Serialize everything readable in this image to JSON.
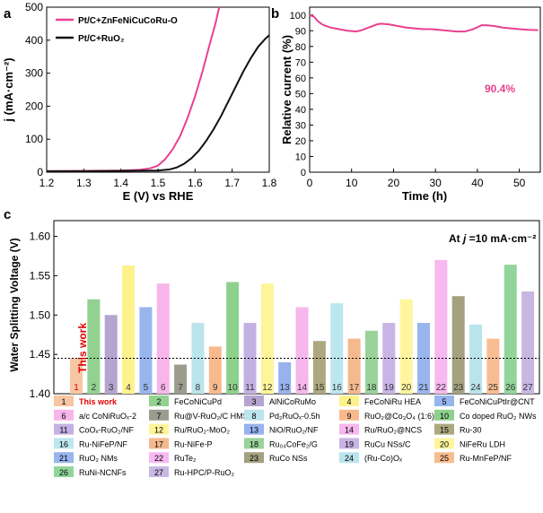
{
  "chart_data": [
    {
      "panel": "a",
      "type": "line",
      "xlabel": "E (V) vs RHE",
      "ylabel": "j (mA·cm⁻²)",
      "xlim": [
        1.2,
        1.8
      ],
      "ylim": [
        0,
        500
      ],
      "xticks": [
        "1.2",
        "1.3",
        "1.4",
        "1.5",
        "1.6",
        "1.7",
        "1.8"
      ],
      "yticks": [
        "0",
        "100",
        "200",
        "300",
        "400",
        "500"
      ],
      "legend_position": "top-left",
      "series": [
        {
          "name": "Pt/C+ZnFeNiCuCoRu-O",
          "color": "#e8418f",
          "x": [
            1.2,
            1.3,
            1.4,
            1.45,
            1.48,
            1.5,
            1.52,
            1.54,
            1.56,
            1.58,
            1.6,
            1.62,
            1.64,
            1.655,
            1.665
          ],
          "y": [
            3,
            4,
            5,
            7,
            12,
            20,
            40,
            70,
            110,
            165,
            230,
            305,
            390,
            450,
            500
          ]
        },
        {
          "name": "Pt/C+RuO₂",
          "color": "#111111",
          "x": [
            1.2,
            1.3,
            1.4,
            1.5,
            1.53,
            1.55,
            1.57,
            1.59,
            1.61,
            1.63,
            1.65,
            1.67,
            1.69,
            1.71,
            1.73,
            1.75,
            1.77,
            1.79,
            1.8
          ],
          "y": [
            3,
            3,
            4,
            5,
            8,
            14,
            25,
            42,
            65,
            95,
            130,
            170,
            215,
            260,
            305,
            345,
            380,
            405,
            415
          ]
        }
      ]
    },
    {
      "panel": "b",
      "type": "line",
      "xlabel": "Time (h)",
      "ylabel": "Relative current (%)",
      "xlim": [
        0,
        55
      ],
      "ylim": [
        0,
        105
      ],
      "xticks": [
        "0",
        "10",
        "20",
        "30",
        "40",
        "50"
      ],
      "yticks": [
        "0",
        "10",
        "20",
        "30",
        "40",
        "50",
        "60",
        "70",
        "80",
        "90",
        "100"
      ],
      "annotation": "90.4%",
      "series": [
        {
          "name": "",
          "color": "#e8418f",
          "x": [
            0,
            1,
            2,
            3,
            4,
            5,
            7,
            9,
            11,
            12,
            14,
            16,
            17,
            19,
            21,
            23,
            25,
            27,
            29,
            31,
            33,
            35,
            37,
            39,
            41,
            42,
            44,
            46,
            48,
            50,
            52,
            54.5
          ],
          "y": [
            100,
            99,
            96,
            94,
            93,
            92,
            91,
            90,
            89.5,
            90,
            92,
            94,
            94.5,
            94,
            93,
            92,
            91.5,
            91,
            91,
            90.5,
            90,
            89.5,
            89.5,
            91,
            93.5,
            93.5,
            93,
            92,
            91.5,
            91,
            90.6,
            90.4
          ]
        }
      ]
    },
    {
      "panel": "c",
      "type": "bar",
      "ylabel": "Water Splitting Voltage (V)",
      "ylim": [
        1.4,
        1.62
      ],
      "yticks": [
        "1.40",
        "1.45",
        "1.50",
        "1.55",
        "1.60"
      ],
      "annotation": "At j =10 mA·cm⁻²",
      "highlight_label": "This work",
      "reference_line": 1.445,
      "categories": [
        "1",
        "2",
        "3",
        "4",
        "5",
        "6",
        "7",
        "8",
        "9",
        "10",
        "11",
        "12",
        "13",
        "14",
        "15",
        "16",
        "17",
        "18",
        "19",
        "20",
        "21",
        "22",
        "23",
        "24",
        "25",
        "26",
        "27"
      ],
      "values": [
        1.445,
        1.52,
        1.5,
        1.563,
        1.51,
        1.54,
        1.437,
        1.49,
        1.46,
        1.542,
        1.49,
        1.54,
        1.44,
        1.51,
        1.467,
        1.515,
        1.47,
        1.48,
        1.49,
        1.52,
        1.49,
        1.57,
        1.524,
        1.488,
        1.47,
        1.564,
        1.53
      ],
      "colors": [
        "#f7c6a2",
        "#92d18f",
        "#b5a4d0",
        "#fef28c",
        "#97b5ee",
        "#f8b5ea",
        "#9a9c8e",
        "#bbe5ec",
        "#f8ba8d",
        "#8ed18c",
        "#c4b1e3",
        "#fef59a",
        "#97b2ee",
        "#f6b7ec",
        "#aea880",
        "#bde7ef",
        "#f5b98e",
        "#99d39a",
        "#c8b4e5",
        "#fef59e",
        "#98b5ee",
        "#f8b8f0",
        "#a3a17f",
        "#bae4ed",
        "#f7bd91",
        "#92d59b",
        "#c8b7e3"
      ],
      "legend": [
        {
          "n": "1",
          "label": "This work"
        },
        {
          "n": "2",
          "label": "FeCoNiCuPd"
        },
        {
          "n": "3",
          "label": "AlNiCoRuMo"
        },
        {
          "n": "4",
          "label": "FeCoNiRu HEA"
        },
        {
          "n": "5",
          "label": "FeCoNiCuPtIr@CNT"
        },
        {
          "n": "6",
          "label": "a/c CoNiRuOₓ-2"
        },
        {
          "n": "7",
          "label": "Ru@V-RuO₂/C HMS"
        },
        {
          "n": "8",
          "label": "Pd₂RuOₓ-0.5h"
        },
        {
          "n": "9",
          "label": "RuO₂@Co₃O₄ (1:6)"
        },
        {
          "n": "10",
          "label": "Co doped RuO₂ NWs"
        },
        {
          "n": "11",
          "label": "CoOₓ-RuO₂/NF"
        },
        {
          "n": "12",
          "label": "Ru/RuO₂-MoO₂"
        },
        {
          "n": "13",
          "label": "NiO/RuO₂/NF"
        },
        {
          "n": "14",
          "label": "Ru/RuO₂@NCS"
        },
        {
          "n": "15",
          "label": "Ru-30"
        },
        {
          "n": "16",
          "label": "Ru-NiFeP/NF"
        },
        {
          "n": "17",
          "label": "Ru-NiFe-P"
        },
        {
          "n": "18",
          "label": "Ru₀₄CoFe₂/G"
        },
        {
          "n": "19",
          "label": "RuCu NSs/C"
        },
        {
          "n": "20",
          "label": "NiFeRu LDH"
        },
        {
          "n": "21",
          "label": "RuO₂ NMs"
        },
        {
          "n": "22",
          "label": "RuTe₂"
        },
        {
          "n": "23",
          "label": "RuCo NSs"
        },
        {
          "n": "24",
          "label": "(Ru-Co)Oₓ"
        },
        {
          "n": "25",
          "label": "Ru-MnFeP/NF"
        },
        {
          "n": "26",
          "label": "RuNi-NCNFs"
        },
        {
          "n": "27",
          "label": "Ru-HPC/P-RuO₂"
        }
      ]
    }
  ],
  "panel_labels": {
    "a": "a",
    "b": "b",
    "c": "c"
  }
}
